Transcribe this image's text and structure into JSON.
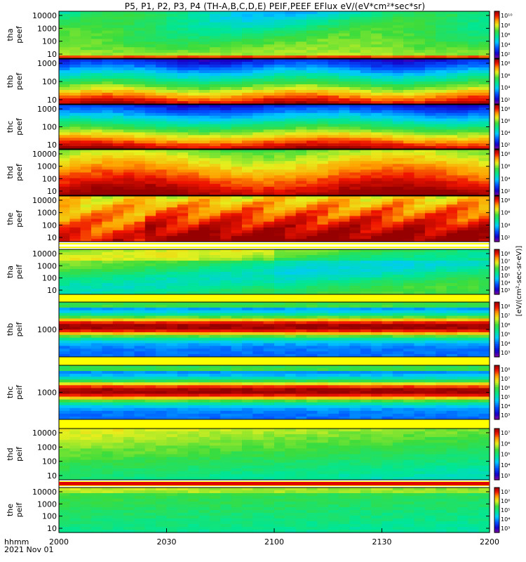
{
  "title": "P5, P1, P2, P3, P4 (TH-A,B,C,D,E) PEIF,PEEF EFlux eV/(eV*cm²*sec*sr)",
  "footer": {
    "time_format": "hhmm",
    "date": "2021 Nov 01"
  },
  "colors": {
    "frame": "#000000",
    "background": "#ffffff",
    "fill_band": "#ffff00",
    "data_gap": "#ffffff"
  },
  "chart_data": {
    "type": "heatmap",
    "x_ticks": [
      "2000",
      "2030",
      "2100",
      "2130",
      "2200"
    ],
    "xlim": [
      "20:00",
      "22:00"
    ],
    "colorscale": "rainbow (blue-cyan-green-yellow-red-darkred)",
    "colorbar_label": "[eV/(cm²-sec-sr-eV)]",
    "panels": [
      {
        "label1": "tha",
        "label2": "peef",
        "yticks": [
          "10000",
          "1000",
          "100",
          "10"
        ],
        "cbar_ticks": [
          "10¹⁰",
          "10⁸",
          "10⁶",
          "10⁴",
          "10²"
        ],
        "profile": "peef_tha"
      },
      {
        "label1": "thb",
        "label2": "peef",
        "yticks": [
          "1000",
          "100",
          "10"
        ],
        "cbar_ticks": [
          "10⁸",
          "10⁶",
          "10⁴",
          "10²"
        ],
        "profile": "peef_thb"
      },
      {
        "label1": "thc",
        "label2": "peef",
        "yticks": [
          "1000",
          "100",
          "10"
        ],
        "cbar_ticks": [
          "10⁸",
          "10⁶",
          "10⁴",
          "10²"
        ],
        "profile": "peef_thc"
      },
      {
        "label1": "thd",
        "label2": "peef",
        "yticks": [
          "10000",
          "1000",
          "100",
          "10"
        ],
        "cbar_ticks": [
          "10⁸",
          "10⁶",
          "10⁴",
          "10²"
        ],
        "profile": "peef_thd"
      },
      {
        "label1": "the",
        "label2": "peef",
        "yticks": [
          "10000",
          "1000",
          "100",
          "10"
        ],
        "cbar_ticks": [
          "10⁸",
          "10⁶",
          "10⁴",
          "10²"
        ],
        "profile": "peef_the"
      },
      {
        "label1": "tha",
        "label2": "peif",
        "yticks": [
          "10000",
          "1000",
          "100",
          "10"
        ],
        "cbar_ticks": [
          "10⁸",
          "10⁷",
          "10⁶",
          "10⁵",
          "10⁴",
          "10³"
        ],
        "profile": "peif_tha"
      },
      {
        "label1": "thb",
        "label2": "peif",
        "yticks": [
          "1000"
        ],
        "cbar_ticks": [
          "10⁸",
          "10⁷",
          "10⁶",
          "10⁵",
          "10⁴",
          "10³"
        ],
        "profile": "peif_thb"
      },
      {
        "label1": "thc",
        "label2": "peif",
        "yticks": [
          "1000"
        ],
        "cbar_ticks": [
          "10⁸",
          "10⁷",
          "10⁶",
          "10⁵",
          "10⁴",
          "10³"
        ],
        "profile": "peif_thc"
      },
      {
        "label1": "thd",
        "label2": "peif",
        "yticks": [
          "10000",
          "1000",
          "100",
          "10"
        ],
        "cbar_ticks": [
          "10⁷",
          "10⁶",
          "10⁵",
          "10⁴",
          "10³"
        ],
        "profile": "peif_thd"
      },
      {
        "label1": "the",
        "label2": "peif",
        "yticks": [
          "10000",
          "1000",
          "100",
          "10"
        ],
        "cbar_ticks": [
          "10⁷",
          "10⁶",
          "10⁵",
          "10⁴",
          "10³"
        ],
        "profile": "peif_the"
      }
    ]
  }
}
